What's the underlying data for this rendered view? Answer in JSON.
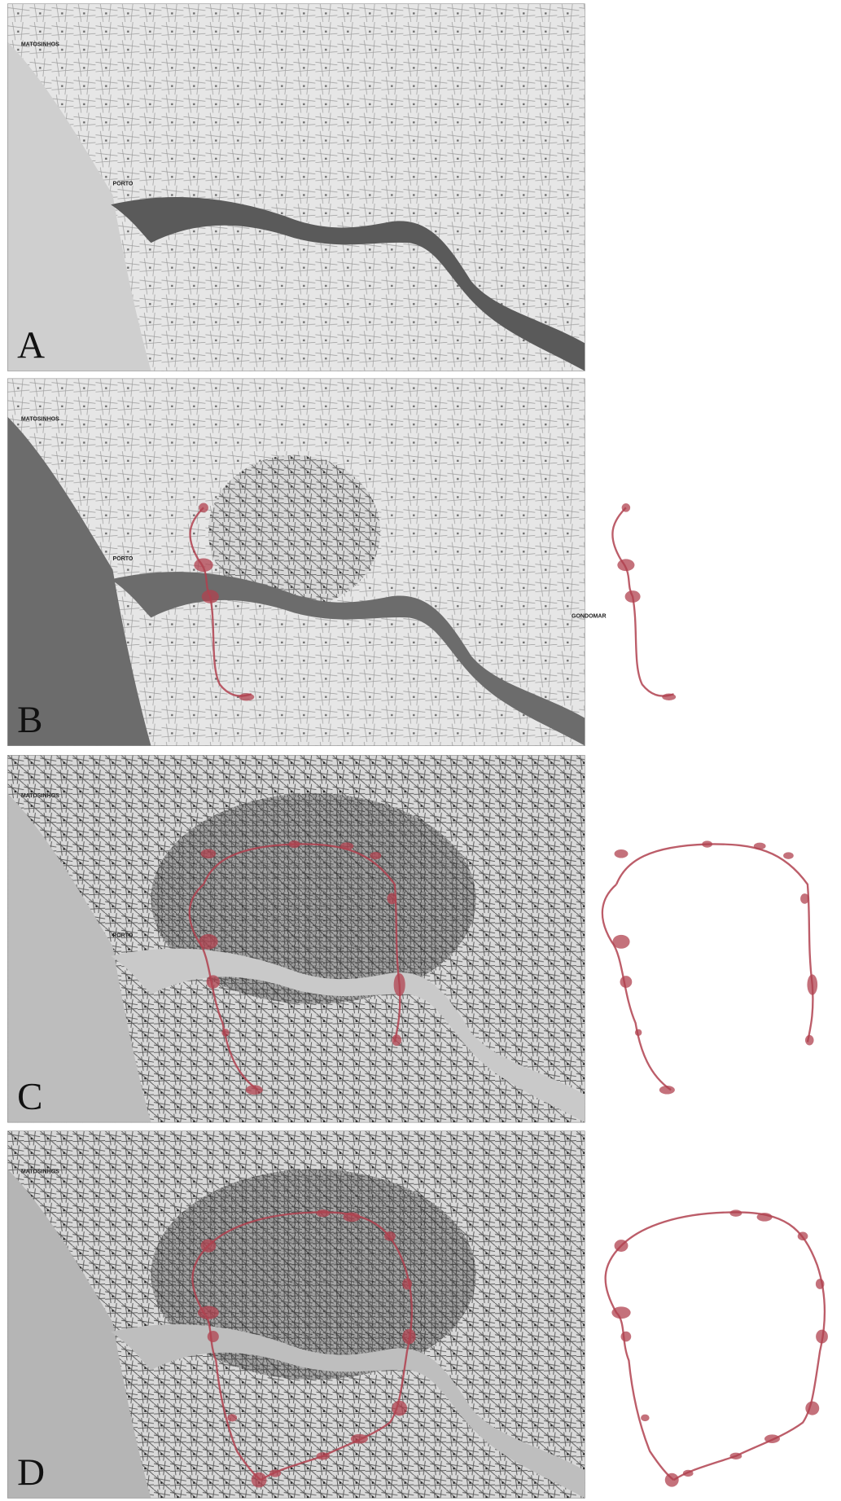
{
  "panels": [
    {
      "label": "A",
      "place_names": [
        "MATOSINHOS",
        "PORTO"
      ]
    },
    {
      "label": "B",
      "place_names": [
        "MATOSINHOS",
        "PORTO",
        "GONDOMAR"
      ]
    },
    {
      "label": "C",
      "place_names": [
        "MATOSINHOS",
        "PORTO"
      ]
    },
    {
      "label": "D",
      "place_names": [
        "MATOSINHOS"
      ]
    }
  ]
}
